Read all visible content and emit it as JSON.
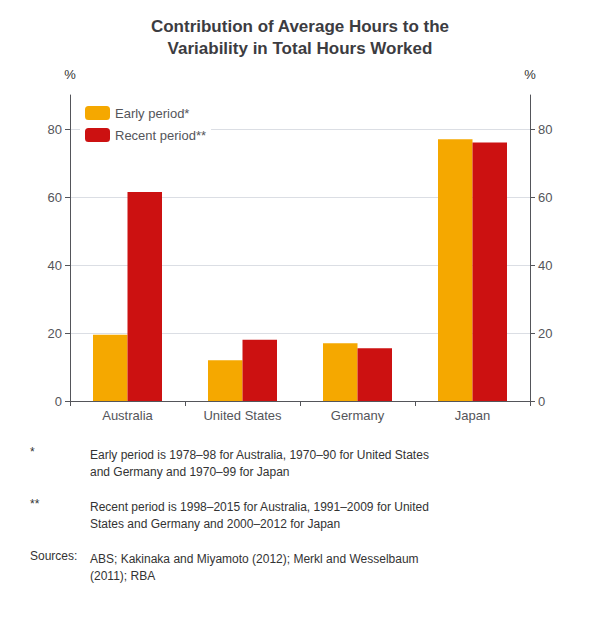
{
  "chart_data": {
    "type": "bar",
    "title": "Contribution of Average Hours to the\nVariability in Total Hours Worked",
    "categories": [
      "Australia",
      "United States",
      "Germany",
      "Japan"
    ],
    "series": [
      {
        "name": "Early period*",
        "color": "#F5A800",
        "values": [
          19.5,
          12.0,
          17.0,
          77.0
        ]
      },
      {
        "name": "Recent period**",
        "color": "#CC1111",
        "values": [
          61.5,
          18.0,
          15.5,
          76.0
        ]
      }
    ],
    "ylabel": "%",
    "y2label": "%",
    "ylim": [
      0,
      90
    ],
    "yticks": [
      0,
      20,
      40,
      60,
      80
    ],
    "y2lim": [
      0,
      90
    ],
    "y2ticks": [
      0,
      20,
      40,
      60,
      80
    ],
    "grid": true,
    "legend": "upper left",
    "annotations": [
      "*",
      "Early period is 1978–98 for Australia, 1970–90 for United States\nand Germany and 1970–99 for Japan",
      "**",
      "Recent period is 1998–2015 for Australia, 1991–2009 for United\nStates and Germany and 2000–2012 for Japan",
      "Sources:",
      "ABS; Kakinaka and Miyamoto (2012); Merkl and Wesselbaum\n(2011); RBA"
    ]
  }
}
